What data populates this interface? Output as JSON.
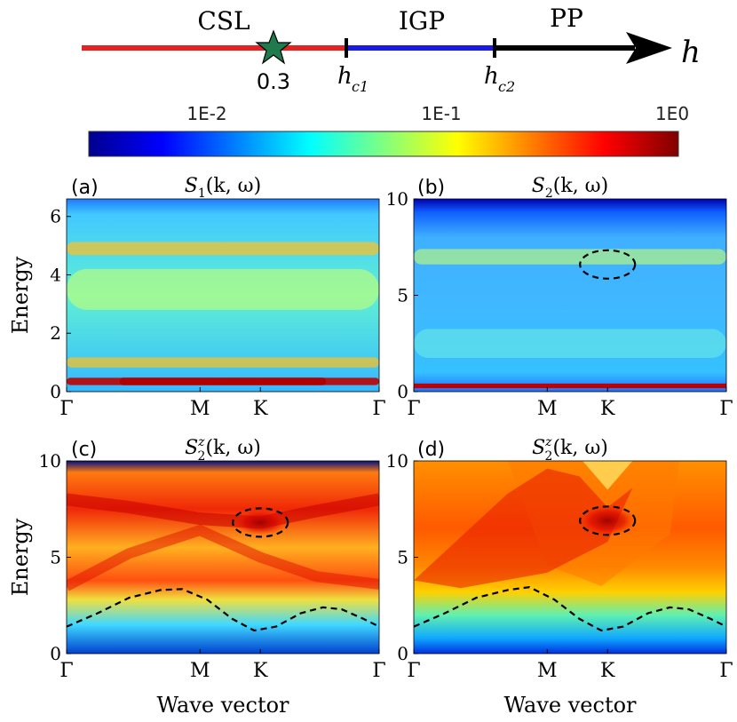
{
  "phase_diagram": {
    "phases": [
      "CSL",
      "IGP",
      "PP"
    ],
    "star_value": "0.3",
    "critical_1": "c1",
    "critical_2": "c2",
    "axis_label": "h",
    "colors": {
      "csl": "#e32222",
      "igp": "#1a1ae6",
      "pp": "#000000",
      "star": "#1f7a4d"
    }
  },
  "colorbar": {
    "tick_labels": [
      "1E-2",
      "1E-1",
      "1E0"
    ],
    "colormap": [
      "#00008f",
      "#0000ff",
      "#0080ff",
      "#00ffff",
      "#80ff80",
      "#ffff00",
      "#ff8000",
      "#ff0000",
      "#800000"
    ]
  },
  "chart_data": [
    {
      "type": "heatmap",
      "panel": "(a)",
      "title": "S1(k,ω)",
      "title_main": "S",
      "title_sub": "1",
      "title_sup": "",
      "title_args": "(k, ω)",
      "ylabel": "Energy",
      "xlabel": "",
      "ylim": [
        0,
        6.6
      ],
      "yticks": [
        "0",
        "2",
        "4",
        "6"
      ],
      "ytick_values": [
        0,
        2,
        4,
        6
      ],
      "xticks": [
        "Γ",
        "M",
        "K",
        "Γ"
      ],
      "xtick_values": [
        0,
        0.427,
        0.62,
        1.0
      ],
      "bands": [
        {
          "e": 0.35,
          "w": 0.25,
          "intensity": 1.0
        },
        {
          "e": 1.0,
          "w": 0.35,
          "intensity": 0.65
        },
        {
          "e": 3.5,
          "w": 1.4,
          "intensity": 0.45
        },
        {
          "e": 4.9,
          "w": 0.45,
          "intensity": 0.65
        }
      ]
    },
    {
      "type": "heatmap",
      "panel": "(b)",
      "title": "S2(k,ω)",
      "title_main": "S",
      "title_sub": "2",
      "title_sup": "",
      "title_args": "(k, ω)",
      "ylabel": "",
      "xlabel": "",
      "ylim": [
        0,
        10
      ],
      "yticks": [
        "0",
        "5",
        "10"
      ],
      "ytick_values": [
        0,
        5,
        10
      ],
      "xticks": [
        "Γ",
        "M",
        "K",
        "Γ"
      ],
      "xtick_values": [
        0,
        0.427,
        0.62,
        1.0
      ],
      "bands": [
        {
          "e": 0.3,
          "w": 0.15,
          "intensity": 1.0
        },
        {
          "e": 2.5,
          "w": 1.5,
          "intensity": 0.35
        },
        {
          "e": 7.0,
          "w": 0.8,
          "intensity": 0.45
        }
      ],
      "ellipse": {
        "k": 0.62,
        "e": 6.6
      }
    },
    {
      "type": "heatmap",
      "panel": "(c)",
      "title": "S2z(k,ω)",
      "title_main": "S",
      "title_sub": "2",
      "title_sup": "z",
      "title_args": "(k, ω)",
      "ylabel": "Energy",
      "xlabel": "Wave vector",
      "ylim": [
        0,
        10
      ],
      "yticks": [
        "0",
        "5",
        "10"
      ],
      "ytick_values": [
        0,
        5,
        10
      ],
      "xticks": [
        "Γ",
        "M",
        "K",
        "Γ"
      ],
      "xtick_values": [
        0,
        0.427,
        0.62,
        1.0
      ],
      "dashed_curve": [
        [
          0,
          1.4
        ],
        [
          0.1,
          2.1
        ],
        [
          0.2,
          2.9
        ],
        [
          0.3,
          3.3
        ],
        [
          0.37,
          3.35
        ],
        [
          0.45,
          2.8
        ],
        [
          0.53,
          1.8
        ],
        [
          0.6,
          1.2
        ],
        [
          0.67,
          1.4
        ],
        [
          0.75,
          2.1
        ],
        [
          0.82,
          2.4
        ],
        [
          0.88,
          2.3
        ],
        [
          0.95,
          1.8
        ],
        [
          1.0,
          1.4
        ]
      ],
      "ellipse": {
        "k": 0.62,
        "e": 6.8
      }
    },
    {
      "type": "heatmap",
      "panel": "(d)",
      "title": "S2z(k,ω)",
      "title_main": "S",
      "title_sub": "2",
      "title_sup": "z",
      "title_args": "(k, ω)",
      "ylabel": "",
      "xlabel": "Wave vector",
      "ylim": [
        0,
        10
      ],
      "yticks": [
        "0",
        "5",
        "10"
      ],
      "ytick_values": [
        0,
        5,
        10
      ],
      "xticks": [
        "Γ",
        "M",
        "K",
        "Γ"
      ],
      "xtick_values": [
        0,
        0.427,
        0.62,
        1.0
      ],
      "dashed_curve": [
        [
          0,
          1.4
        ],
        [
          0.1,
          2.1
        ],
        [
          0.2,
          2.9
        ],
        [
          0.3,
          3.3
        ],
        [
          0.37,
          3.45
        ],
        [
          0.45,
          2.8
        ],
        [
          0.53,
          1.8
        ],
        [
          0.6,
          1.2
        ],
        [
          0.67,
          1.4
        ],
        [
          0.75,
          2.1
        ],
        [
          0.82,
          2.4
        ],
        [
          0.88,
          2.3
        ],
        [
          0.95,
          1.8
        ],
        [
          1.0,
          1.4
        ]
      ],
      "ellipse": {
        "k": 0.62,
        "e": 6.9
      }
    }
  ]
}
